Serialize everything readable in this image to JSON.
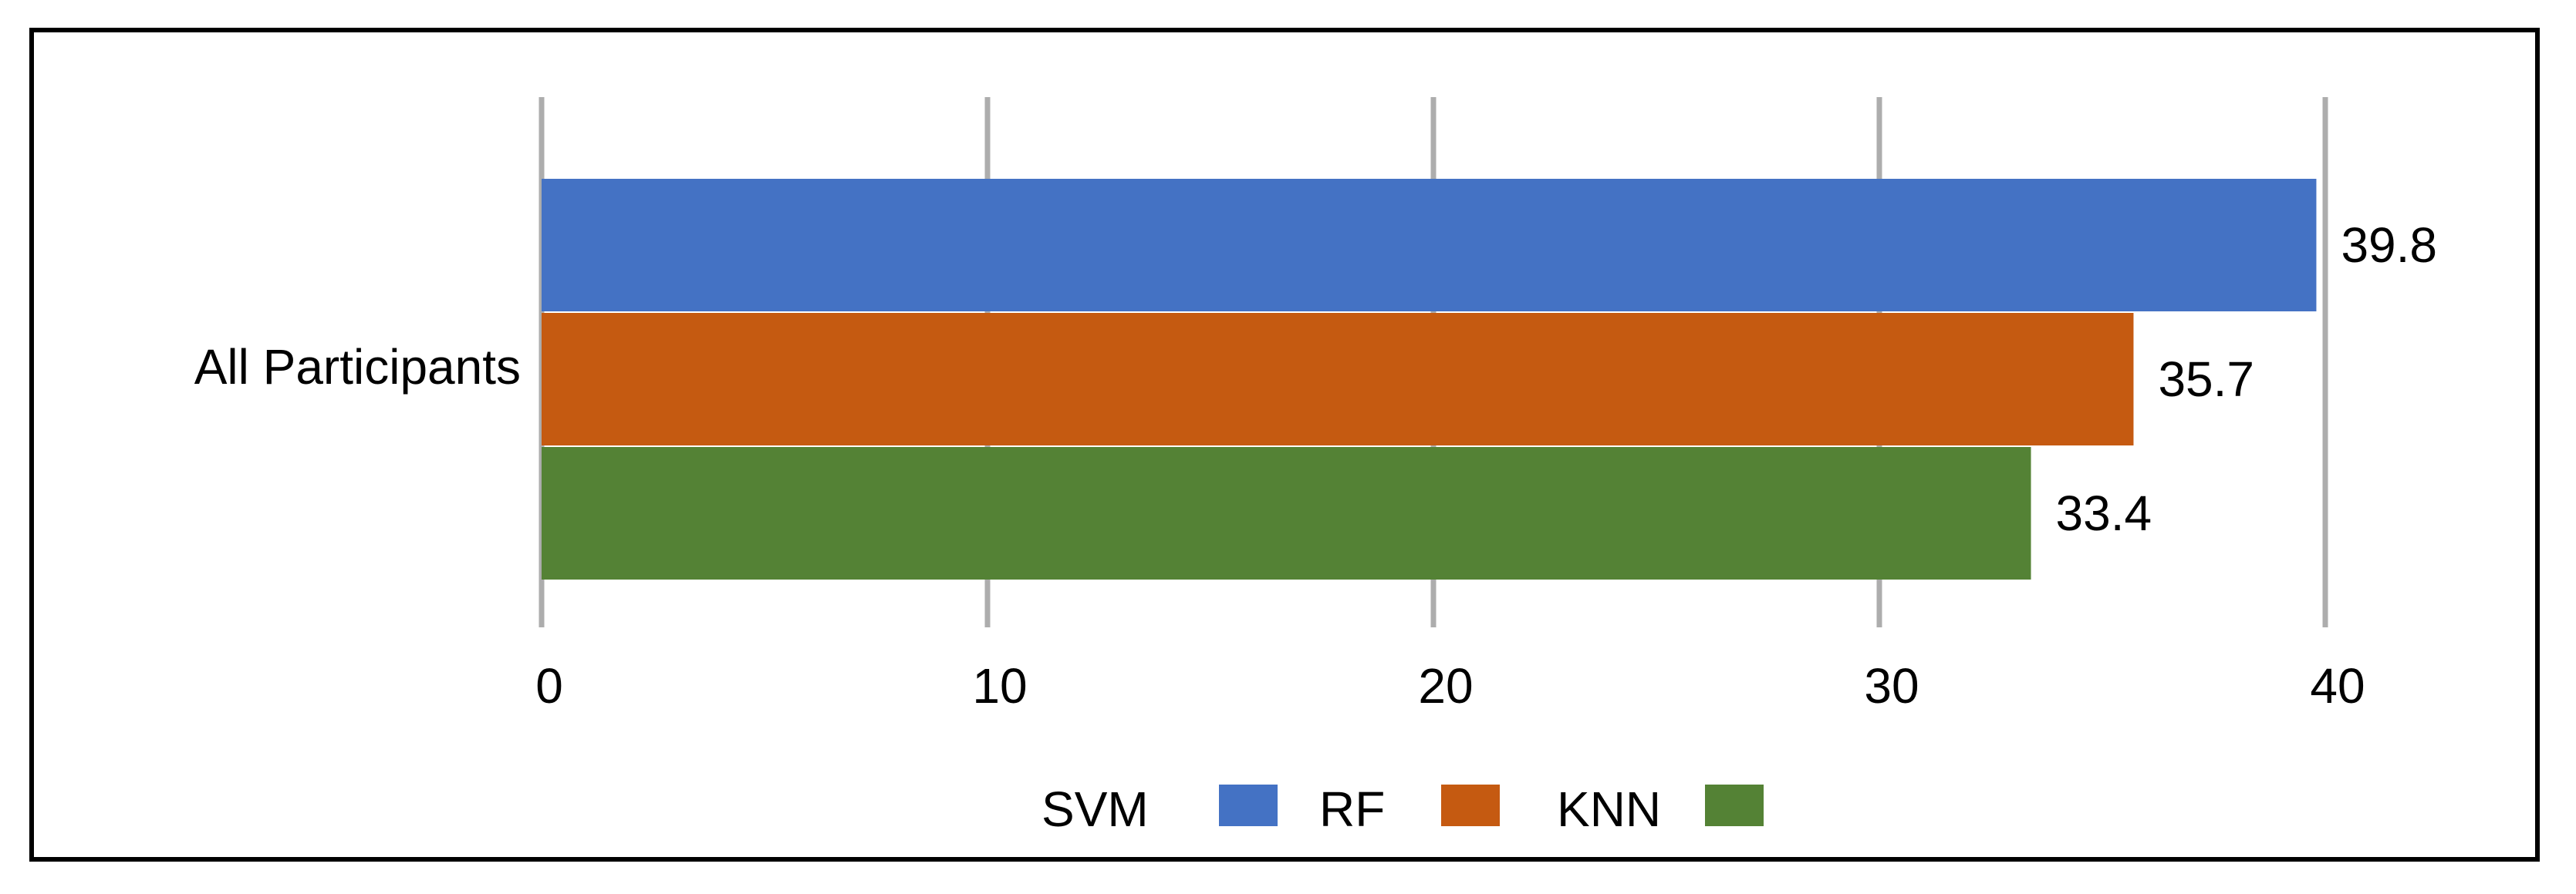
{
  "chart_data": {
    "type": "bar",
    "orientation": "horizontal",
    "categories": [
      "All Participants"
    ],
    "series": [
      {
        "name": "SVM",
        "values": [
          39.8
        ],
        "color": "#4472C4"
      },
      {
        "name": "RF",
        "values": [
          35.7
        ],
        "color": "#C55A11"
      },
      {
        "name": "KNN",
        "values": [
          33.4
        ],
        "color": "#548235"
      }
    ],
    "title": "",
    "xlabel": "",
    "ylabel": "",
    "xlim": [
      0,
      40
    ],
    "xticks": [
      "0",
      "10",
      "20",
      "30",
      "40"
    ],
    "data_labels": [
      "39.8",
      "35.7",
      "33.4"
    ],
    "grid": "vertical",
    "legend_position": "bottom",
    "gridline_color": "#ADADAD"
  }
}
